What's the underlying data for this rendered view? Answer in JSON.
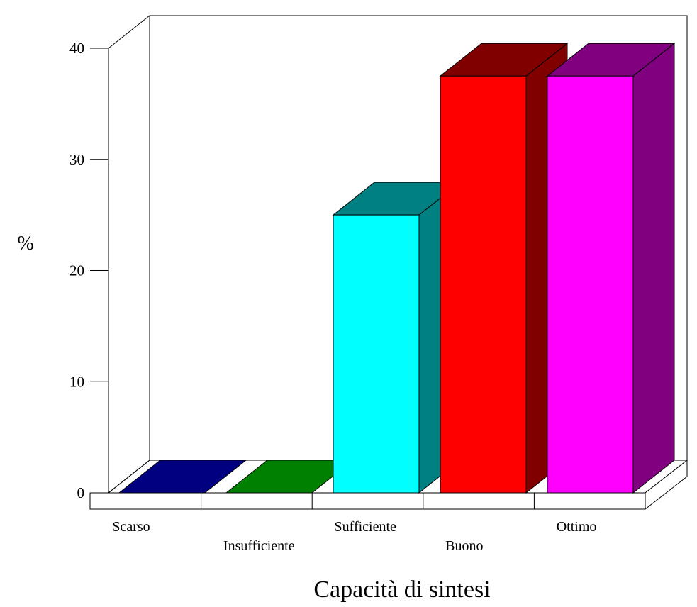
{
  "chart_data": {
    "type": "bar",
    "style": "3d",
    "title": "",
    "xlabel": "Capacità di sintesi",
    "ylabel": "%",
    "categories": [
      "Scarso",
      "Insufficiente",
      "Sufficiente",
      "Buono",
      "Ottimo"
    ],
    "values": [
      0,
      0,
      25,
      37.5,
      37.5
    ],
    "ylim": [
      0,
      40
    ],
    "yticks": [
      "0",
      "10",
      "20",
      "30",
      "40"
    ],
    "grid": false,
    "legend": "none",
    "bar_colors": [
      {
        "front": "#000080",
        "side": "#000060",
        "top": "#000080"
      },
      {
        "front": "#008000",
        "side": "#006000",
        "top": "#008000"
      },
      {
        "front": "#00FFFF",
        "side": "#008080",
        "top": "#008080"
      },
      {
        "front": "#FF0000",
        "side": "#800000",
        "top": "#800000"
      },
      {
        "front": "#FF00FF",
        "side": "#800080",
        "top": "#800080"
      }
    ]
  }
}
